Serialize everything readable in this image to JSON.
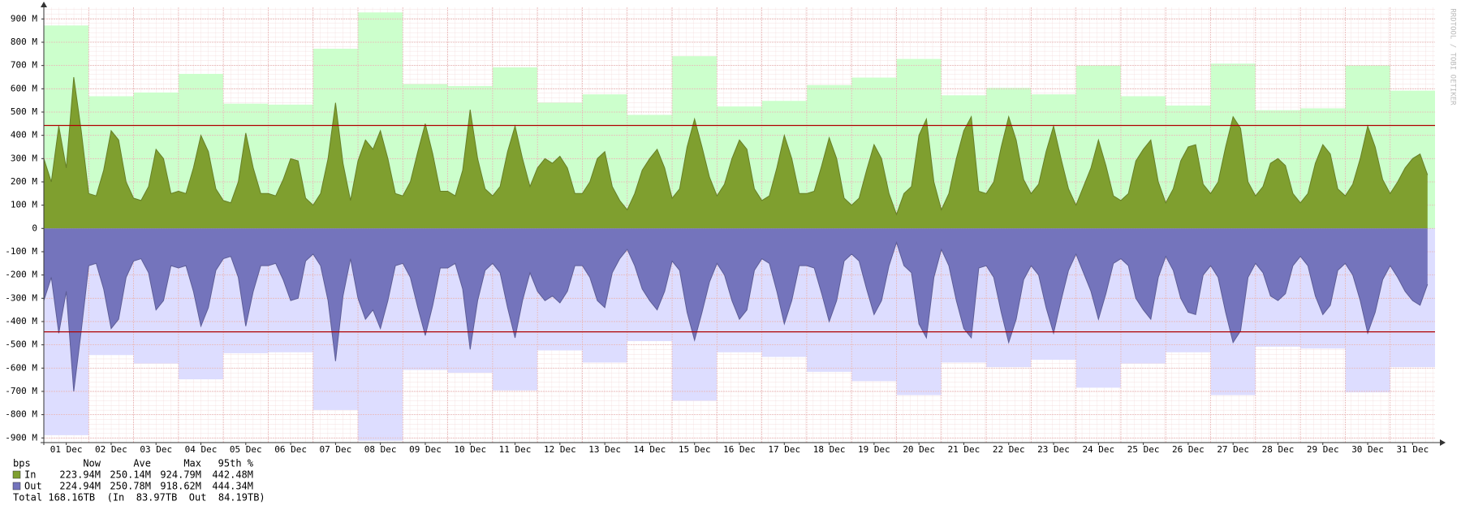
{
  "chart_data": {
    "type": "area",
    "watermark": "RRDTOOL / TOBI OETIKER",
    "xlim": [
      0,
      744
    ],
    "ylim": [
      -920,
      950
    ],
    "yticks": [
      {
        "value": 900,
        "label": "900 M"
      },
      {
        "value": 800,
        "label": "800 M"
      },
      {
        "value": 700,
        "label": "700 M"
      },
      {
        "value": 600,
        "label": "600 M"
      },
      {
        "value": 500,
        "label": "500 M"
      },
      {
        "value": 400,
        "label": "400 M"
      },
      {
        "value": 300,
        "label": "300 M"
      },
      {
        "value": 200,
        "label": "200 M"
      },
      {
        "value": 100,
        "label": "100 M"
      },
      0,
      {
        "value": -100,
        "label": "-100 M"
      },
      {
        "value": -200,
        "label": "-200 M"
      },
      {
        "value": -300,
        "label": "-300 M"
      },
      {
        "value": -400,
        "label": "-400 M"
      },
      {
        "value": -500,
        "label": "-500 M"
      },
      {
        "value": -600,
        "label": "-600 M"
      },
      {
        "value": -700,
        "label": "-700 M"
      },
      {
        "value": -800,
        "label": "-800 M"
      },
      {
        "value": -900,
        "label": "-900 M"
      }
    ],
    "xticks": [
      {
        "value": 12,
        "label": "01 Dec"
      },
      {
        "value": 36,
        "label": "02 Dec"
      },
      {
        "value": 60,
        "label": "03 Dec"
      },
      {
        "value": 84,
        "label": "04 Dec"
      },
      {
        "value": 108,
        "label": "05 Dec"
      },
      {
        "value": 132,
        "label": "06 Dec"
      },
      {
        "value": 156,
        "label": "07 Dec"
      },
      {
        "value": 180,
        "label": "08 Dec"
      },
      {
        "value": 204,
        "label": "09 Dec"
      },
      {
        "value": 228,
        "label": "10 Dec"
      },
      {
        "value": 252,
        "label": "11 Dec"
      },
      {
        "value": 276,
        "label": "12 Dec"
      },
      {
        "value": 300,
        "label": "13 Dec"
      },
      {
        "value": 324,
        "label": "14 Dec"
      },
      {
        "value": 348,
        "label": "15 Dec"
      },
      {
        "value": 372,
        "label": "16 Dec"
      },
      {
        "value": 396,
        "label": "17 Dec"
      },
      {
        "value": 420,
        "label": "18 Dec"
      },
      {
        "value": 444,
        "label": "19 Dec"
      },
      {
        "value": 468,
        "label": "20 Dec"
      },
      {
        "value": 492,
        "label": "21 Dec"
      },
      {
        "value": 516,
        "label": "22 Dec"
      },
      {
        "value": 540,
        "label": "23 Dec"
      },
      {
        "value": 564,
        "label": "24 Dec"
      },
      {
        "value": 588,
        "label": "25 Dec"
      },
      {
        "value": 612,
        "label": "26 Dec"
      },
      {
        "value": 636,
        "label": "27 Dec"
      },
      {
        "value": 660,
        "label": "28 Dec"
      },
      {
        "value": 684,
        "label": "29 Dec"
      },
      {
        "value": 708,
        "label": "30 Dec"
      },
      {
        "value": 732,
        "label": "31 Dec"
      }
    ],
    "daily_max": {
      "x": [
        0,
        24,
        48,
        72,
        96,
        120,
        144,
        168,
        192,
        216,
        240,
        264,
        288,
        312,
        336,
        360,
        384,
        408,
        432,
        456,
        480,
        504,
        528,
        552,
        576,
        600,
        624,
        648,
        672,
        696,
        720
      ],
      "in_color": "#ccffcc",
      "out_color": "#ddddff",
      "in": [
        872,
        568,
        584,
        664,
        536,
        532,
        772,
        928,
        620,
        612,
        692,
        540,
        576,
        488,
        740,
        524,
        548,
        616,
        648,
        728,
        572,
        604,
        576,
        700,
        568,
        528,
        708,
        508,
        516,
        700,
        592
      ],
      "out": [
        -888,
        -544,
        -580,
        -648,
        -536,
        -532,
        -780,
        -912,
        -608,
        -620,
        -696,
        -524,
        -576,
        -484,
        -740,
        -532,
        -552,
        -616,
        -656,
        -716,
        -576,
        -596,
        -564,
        -684,
        -580,
        -532,
        -716,
        -508,
        -516,
        -704,
        -596
      ]
    },
    "x": [
      0,
      4,
      8,
      12,
      16,
      20,
      24,
      28,
      32,
      36,
      40,
      44,
      48,
      52,
      56,
      60,
      64,
      68,
      72,
      76,
      80,
      84,
      88,
      92,
      96,
      100,
      104,
      108,
      112,
      116,
      120,
      124,
      128,
      132,
      136,
      140,
      144,
      148,
      152,
      156,
      160,
      164,
      168,
      172,
      176,
      180,
      184,
      188,
      192,
      196,
      200,
      204,
      208,
      212,
      216,
      220,
      224,
      228,
      232,
      236,
      240,
      244,
      248,
      252,
      256,
      260,
      264,
      268,
      272,
      276,
      280,
      284,
      288,
      292,
      296,
      300,
      304,
      308,
      312,
      316,
      320,
      324,
      328,
      332,
      336,
      340,
      344,
      348,
      352,
      356,
      360,
      364,
      368,
      372,
      376,
      380,
      384,
      388,
      392,
      396,
      400,
      404,
      408,
      412,
      416,
      420,
      424,
      428,
      432,
      436,
      440,
      444,
      448,
      452,
      456,
      460,
      464,
      468,
      472,
      476,
      480,
      484,
      488,
      492,
      496,
      500,
      504,
      508,
      512,
      516,
      520,
      524,
      528,
      532,
      536,
      540,
      544,
      548,
      552,
      556,
      560,
      564,
      568,
      572,
      576,
      580,
      584,
      588,
      592,
      596,
      600,
      604,
      608,
      612,
      616,
      620,
      624,
      628,
      632,
      636,
      640,
      644,
      648,
      652,
      656,
      660,
      664,
      668,
      672,
      676,
      680,
      684,
      688,
      692,
      696,
      700,
      704,
      708,
      712,
      716,
      720,
      724,
      728,
      732,
      736,
      740
    ],
    "series": [
      {
        "name": "In",
        "color": "#7f9f2f",
        "values": [
          300,
          200,
          440,
          260,
          650,
          420,
          150,
          140,
          250,
          420,
          380,
          200,
          130,
          120,
          180,
          340,
          300,
          150,
          160,
          150,
          260,
          400,
          330,
          170,
          120,
          110,
          200,
          410,
          260,
          150,
          150,
          140,
          210,
          300,
          290,
          130,
          100,
          150,
          300,
          540,
          280,
          120,
          290,
          380,
          340,
          420,
          300,
          150,
          140,
          200,
          330,
          450,
          320,
          160,
          160,
          140,
          250,
          510,
          300,
          170,
          140,
          180,
          330,
          440,
          300,
          180,
          260,
          300,
          280,
          310,
          260,
          150,
          150,
          200,
          300,
          330,
          180,
          120,
          80,
          150,
          250,
          300,
          340,
          260,
          130,
          170,
          350,
          470,
          350,
          220,
          140,
          190,
          300,
          380,
          340,
          170,
          120,
          140,
          260,
          400,
          300,
          150,
          150,
          160,
          270,
          390,
          300,
          130,
          100,
          130,
          250,
          360,
          300,
          150,
          60,
          150,
          180,
          400,
          470,
          200,
          80,
          150,
          300,
          420,
          480,
          160,
          150,
          200,
          350,
          480,
          380,
          210,
          150,
          190,
          330,
          440,
          300,
          170,
          100,
          180,
          260,
          380,
          270,
          140,
          120,
          150,
          290,
          340,
          380,
          200,
          110,
          170,
          290,
          350,
          360,
          190,
          150,
          200,
          350,
          480,
          430,
          200,
          140,
          180,
          280,
          300,
          270,
          150,
          110,
          150,
          280,
          360,
          320,
          170,
          140,
          190,
          300,
          440,
          350,
          210,
          150,
          200,
          260,
          300,
          320,
          230
        ]
      },
      {
        "name": "Out",
        "color": "#7474bc",
        "values": [
          -310,
          -210,
          -450,
          -270,
          -700,
          -440,
          -160,
          -150,
          -260,
          -430,
          -390,
          -210,
          -140,
          -130,
          -190,
          -350,
          -310,
          -160,
          -170,
          -160,
          -270,
          -420,
          -340,
          -180,
          -130,
          -120,
          -210,
          -420,
          -270,
          -160,
          -160,
          -150,
          -220,
          -310,
          -300,
          -140,
          -110,
          -160,
          -310,
          -570,
          -290,
          -130,
          -300,
          -390,
          -350,
          -430,
          -310,
          -160,
          -150,
          -210,
          -340,
          -460,
          -330,
          -170,
          -170,
          -150,
          -260,
          -520,
          -310,
          -180,
          -150,
          -190,
          -340,
          -470,
          -310,
          -190,
          -270,
          -310,
          -290,
          -320,
          -270,
          -160,
          -160,
          -210,
          -310,
          -340,
          -190,
          -130,
          -90,
          -160,
          -260,
          -310,
          -350,
          -270,
          -140,
          -180,
          -360,
          -480,
          -360,
          -230,
          -150,
          -200,
          -310,
          -390,
          -350,
          -180,
          -130,
          -150,
          -270,
          -410,
          -310,
          -160,
          -160,
          -170,
          -280,
          -400,
          -310,
          -140,
          -110,
          -140,
          -260,
          -370,
          -310,
          -160,
          -60,
          -160,
          -190,
          -410,
          -470,
          -210,
          -90,
          -160,
          -310,
          -430,
          -470,
          -170,
          -160,
          -210,
          -360,
          -490,
          -390,
          -220,
          -160,
          -200,
          -340,
          -450,
          -310,
          -180,
          -110,
          -190,
          -270,
          -390,
          -280,
          -150,
          -130,
          -160,
          -300,
          -350,
          -390,
          -210,
          -120,
          -180,
          -300,
          -360,
          -370,
          -200,
          -160,
          -210,
          -360,
          -490,
          -440,
          -210,
          -150,
          -190,
          -290,
          -310,
          -280,
          -160,
          -120,
          -160,
          -290,
          -370,
          -330,
          -180,
          -150,
          -200,
          -310,
          -450,
          -360,
          -220,
          -160,
          -210,
          -270,
          -310,
          -330,
          -240
        ]
      }
    ],
    "hlines": [
      {
        "value": 442.48,
        "color": "#b00000"
      },
      {
        "value": -444.34,
        "color": "#b00000"
      }
    ],
    "legend": {
      "header": [
        "bps",
        "Now",
        "Ave",
        "Max",
        "95th %"
      ],
      "rows": [
        [
          "223.94M",
          "250.14M",
          "924.79M",
          "442.48M"
        ],
        [
          "224.94M",
          "250.78M",
          "918.62M",
          "444.34M"
        ]
      ],
      "total": "Total 168.16TB  (In  83.97TB  Out  84.19TB)"
    }
  }
}
